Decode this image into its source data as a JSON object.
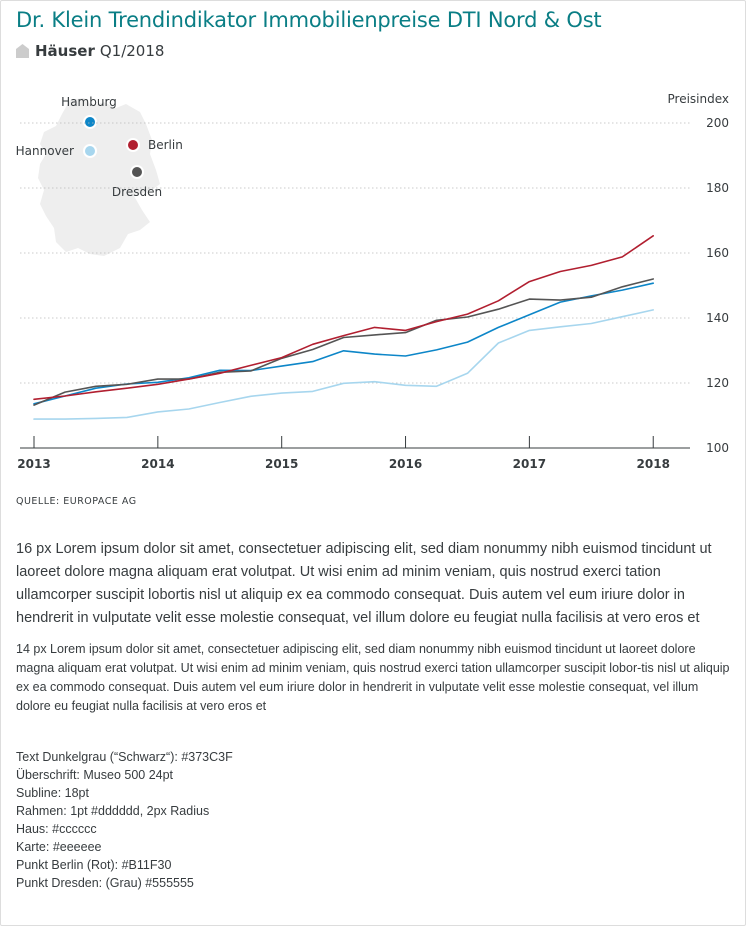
{
  "header": {
    "title": "Dr. Klein Trendindikator Immobilienpreise DTI Nord & Ost",
    "subline_type": "Häuser",
    "subline_period": "Q1/2018",
    "house_color": "#cccccc",
    "title_color": "#0a7e85"
  },
  "map": {
    "map_color": "#eeeeee",
    "cities": [
      {
        "name": "Hamburg",
        "color": "#0d86c8"
      },
      {
        "name": "Hannover",
        "color": "#a7d6ee"
      },
      {
        "name": "Berlin",
        "color": "#B11F30"
      },
      {
        "name": "Dresden",
        "color": "#555555"
      }
    ]
  },
  "chart_data": {
    "type": "line",
    "title": "",
    "xlabel": "",
    "ylabel": "Preisindex",
    "ylim": [
      100,
      200
    ],
    "yticks": [
      100,
      120,
      140,
      160,
      180,
      200
    ],
    "xlim": [
      2013,
      2018.2
    ],
    "xticks": [
      "2013",
      "2014",
      "2015",
      "2016",
      "2017",
      "2018"
    ],
    "grid": "horizontal-dotted",
    "x": [
      2013.0,
      2013.25,
      2013.5,
      2013.75,
      2014.0,
      2014.25,
      2014.5,
      2014.75,
      2015.0,
      2015.25,
      2015.5,
      2015.75,
      2016.0,
      2016.25,
      2016.5,
      2016.75,
      2017.0,
      2017.25,
      2017.5,
      2017.75,
      2018.0
    ],
    "series": [
      {
        "city": "Berlin",
        "color": "#B11F30",
        "values": [
          115.0,
          116.0,
          117.3,
          118.4,
          119.6,
          121.2,
          123.0,
          125.4,
          127.8,
          131.9,
          134.6,
          137.1,
          136.2,
          138.9,
          141.2,
          145.3,
          151.2,
          154.3,
          156.2,
          158.8,
          165.3
        ]
      },
      {
        "city": "Dresden",
        "color": "#555555",
        "values": [
          113.2,
          117.2,
          119.0,
          119.6,
          121.2,
          121.2,
          123.3,
          123.7,
          127.6,
          130.3,
          134.0,
          134.8,
          135.5,
          139.3,
          140.3,
          142.7,
          145.8,
          145.5,
          146.4,
          149.6,
          152.0
        ]
      },
      {
        "city": "Hamburg",
        "color": "#0d86c8",
        "values": [
          113.6,
          116.0,
          118.4,
          119.7,
          120.2,
          121.6,
          123.9,
          123.8,
          125.2,
          126.6,
          129.9,
          128.9,
          128.3,
          130.2,
          132.6,
          137.1,
          141.0,
          144.9,
          146.8,
          148.6,
          150.7
        ]
      },
      {
        "city": "Hannover",
        "color": "#a7d6ee",
        "values": [
          108.9,
          108.9,
          109.1,
          109.4,
          111.1,
          112.0,
          114.0,
          115.9,
          116.9,
          117.4,
          119.9,
          120.4,
          119.3,
          119.0,
          123.0,
          132.3,
          136.2,
          137.3,
          138.3,
          140.4,
          142.5
        ]
      }
    ]
  },
  "source": "QUELLE: EUROPACE AG",
  "text": {
    "p16": "16 px Lorem ipsum dolor sit amet, consectetuer adipiscing elit, sed diam nonummy nibh euismod tincidunt ut laoreet dolore magna aliquam erat volutpat. Ut wisi enim ad minim veniam, quis nostrud exerci tation ullamcorper suscipit lobortis nisl ut aliquip ex ea commodo consequat. Duis autem vel eum iriure dolor in hendrerit in vulputate velit esse molestie consequat, vel illum dolore eu feugiat nulla facilisis at vero eros et",
    "p14": "14 px Lorem ipsum dolor sit amet, consectetuer adipiscing elit, sed diam nonummy nibh euismod tincidunt ut laoreet dolore magna aliquam erat volutpat. Ut wisi enim ad minim veniam, quis nostrud exerci tation ullamcorper suscipit lobor-tis nisl ut aliquip ex ea commodo consequat. Duis autem vel eum iriure dolor in hendrerit in vulputate velit esse molestie consequat, vel illum dolore eu feugiat nulla facilisis at vero eros et"
  },
  "specs": [
    "Text Dunkelgrau (“Schwarz“): #373C3F",
    "Überschrift: Museo 500 24pt",
    "Subline: 18pt",
    "Rahmen: 1pt #dddddd, 2px Radius",
    "Haus: #cccccc",
    "Karte: #eeeeee",
    "Punkt Berlin (Rot): #B11F30",
    "Punkt Dresden: (Grau) #555555"
  ]
}
